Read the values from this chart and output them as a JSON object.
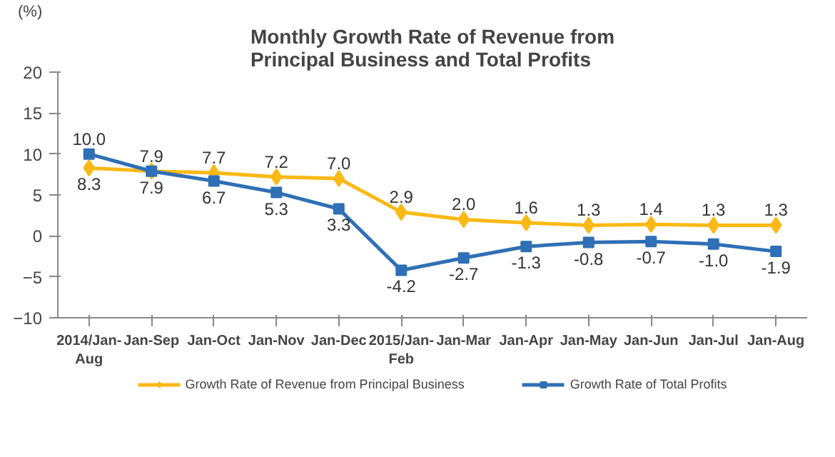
{
  "chart_data": {
    "type": "line",
    "title": "Monthly Growth Rate of Revenue from\nPrincipal Business and Total Profits",
    "ylabel": "(%)",
    "categories": [
      "2014/Jan-\nAug",
      "Jan-Sep",
      "Jan-Oct",
      "Jan-Nov",
      "Jan-Dec",
      "2015/Jan-\nFeb",
      "Jan-Mar",
      "Jan-Apr",
      "Jan-May",
      "Jan-Jun",
      "Jan-Jul",
      "Jan-Aug"
    ],
    "series": [
      {
        "name": "Growth Rate of Revenue from Principal Business",
        "color": "#fbb915",
        "marker": "diamond",
        "values": [
          8.3,
          7.9,
          7.7,
          7.2,
          7.0,
          2.9,
          2.0,
          1.6,
          1.3,
          1.4,
          1.3,
          1.3
        ],
        "value_labels": [
          "8.3",
          "7.9",
          "7.7",
          "7.2",
          "7.0",
          "2.9",
          "2.0",
          "1.6",
          "1.3",
          "1.4",
          "1.3",
          "1.3"
        ]
      },
      {
        "name": "Growth Rate of Total Profits",
        "color": "#2f6fb5",
        "marker": "square",
        "values": [
          10.0,
          7.9,
          6.7,
          5.3,
          3.3,
          -4.2,
          -2.7,
          -1.3,
          -0.8,
          -0.7,
          -1.0,
          -1.9
        ],
        "value_labels": [
          "10.0",
          "7.9",
          "6.7",
          "5.3",
          "3.3",
          "-4.2",
          "-2.7",
          "-1.3",
          "-0.8",
          "-0.7",
          "-1.0",
          "-1.9"
        ]
      }
    ],
    "ylim": [
      -10,
      20
    ],
    "yticks": [
      -10,
      -5,
      0,
      5,
      10,
      15,
      20
    ],
    "grid": false,
    "legend": "bottom"
  }
}
